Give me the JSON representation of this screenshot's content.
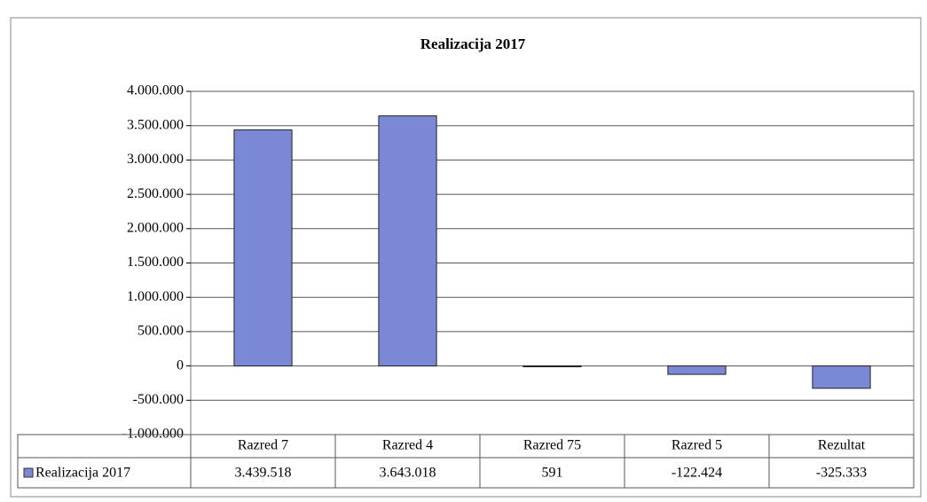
{
  "chart_data": {
    "type": "bar",
    "title": "Realizacija 2017",
    "categories": [
      "Razred 7",
      "Razred 4",
      "Razred 75",
      "Razred 5",
      "Rezultat"
    ],
    "series": [
      {
        "name": "Realizacija 2017",
        "color": "#7b88d6",
        "values": [
          3439518,
          3643018,
          591,
          -122424,
          -325333
        ],
        "value_labels": [
          "3.439.518",
          "3.643.018",
          "591",
          "-122.424",
          "-325.333"
        ]
      }
    ],
    "ylim": [
      -1000000,
      4000000
    ],
    "yticks": [
      {
        "value": -1000000,
        "label": "-1.000.000"
      },
      {
        "value": -500000,
        "label": "-500.000"
      },
      0,
      {
        "value": 500000,
        "label": "500.000"
      },
      {
        "value": 1000000,
        "label": "1.000.000"
      },
      {
        "value": 1500000,
        "label": "1.500.000"
      },
      {
        "value": 2000000,
        "label": "2.000.000"
      },
      {
        "value": 2500000,
        "label": "2.500.000"
      },
      {
        "value": 3000000,
        "label": "3.000.000"
      },
      {
        "value": 3500000,
        "label": "3.500.000"
      },
      {
        "value": 4000000,
        "label": "4.000.000"
      }
    ],
    "grid": true
  }
}
